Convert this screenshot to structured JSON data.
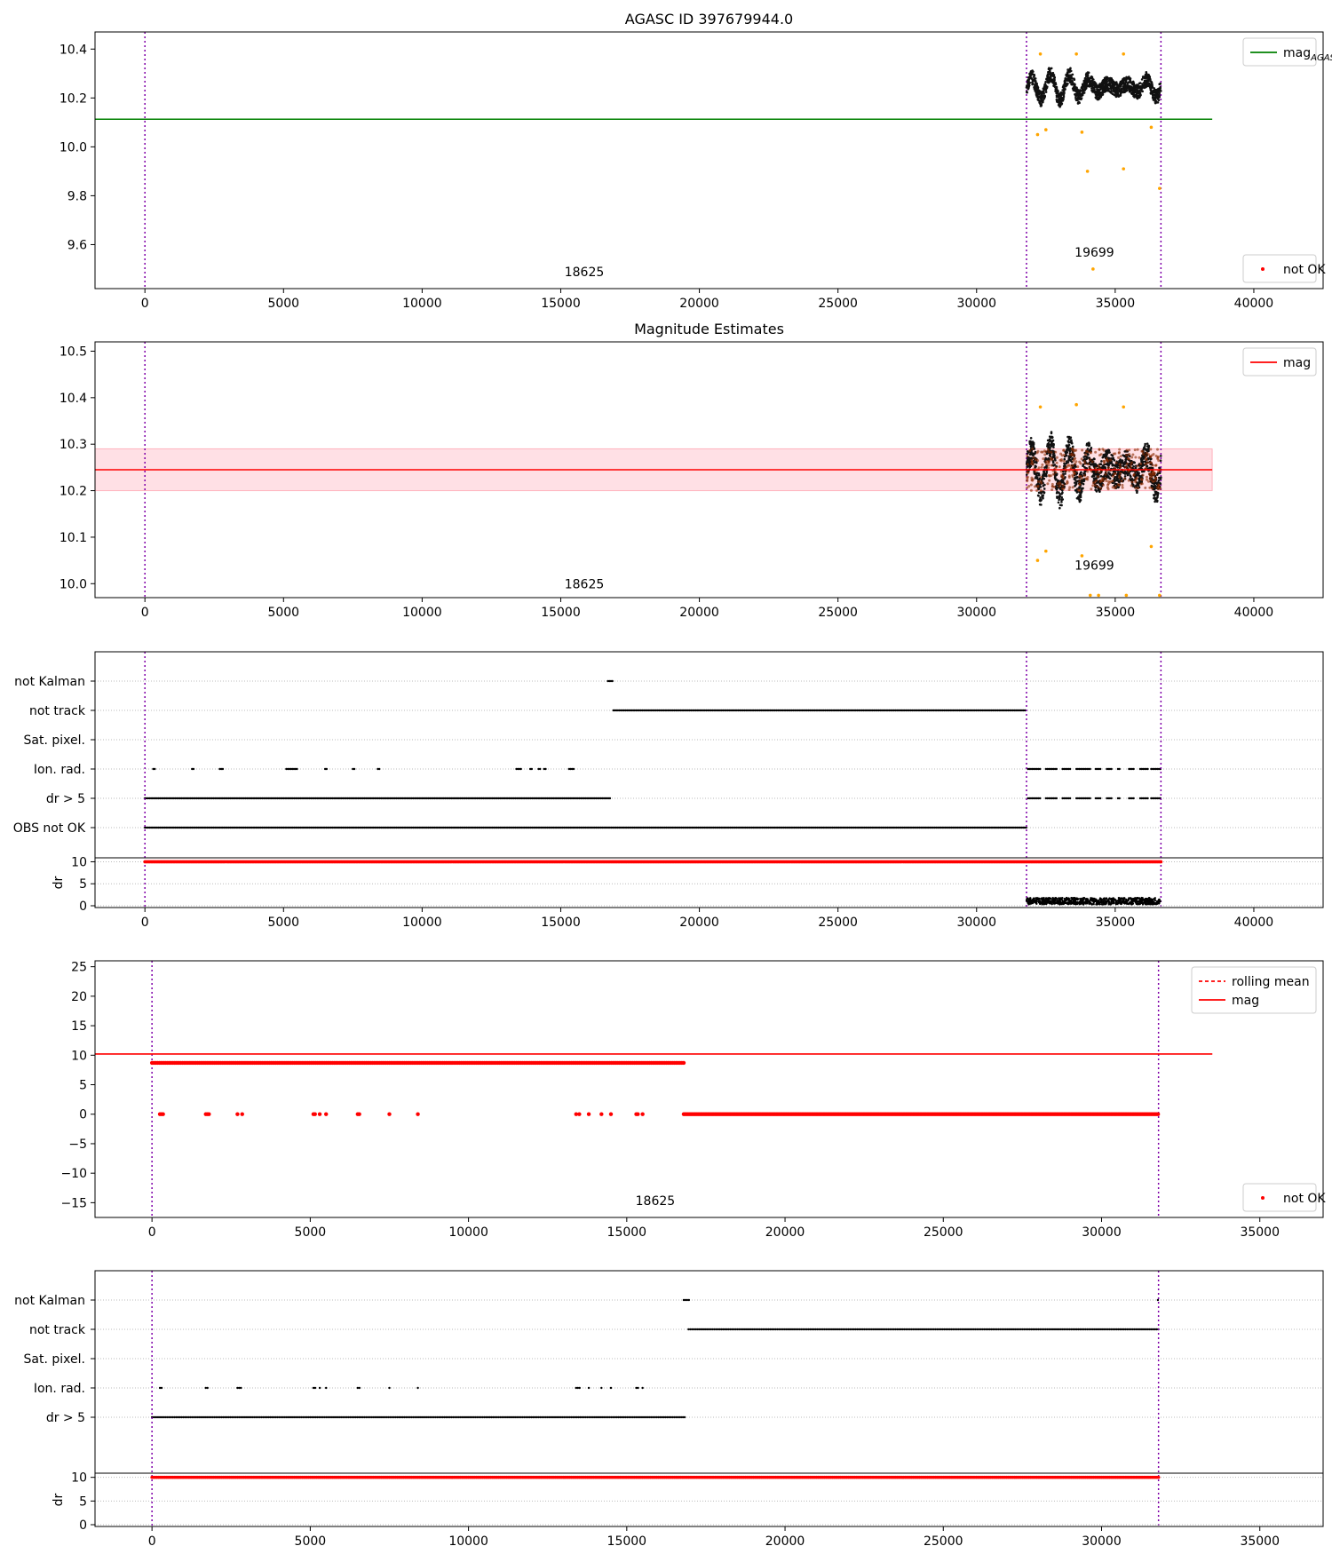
{
  "figure": {
    "width": 1500,
    "height": 1750
  },
  "chart_data": [
    {
      "id": "agasc",
      "type": "scatter",
      "title": "AGASC ID 397679944.0",
      "xlim": [
        -1800,
        42500
      ],
      "ylim": [
        9.42,
        10.47
      ],
      "xticks": [
        0,
        5000,
        10000,
        15000,
        20000,
        25000,
        30000,
        35000,
        40000
      ],
      "yticks": [
        9.6,
        9.8,
        10.0,
        10.2,
        10.4
      ],
      "ytick_labels": [
        "9.6",
        "9.8",
        "10.0",
        "10.2",
        "10.4"
      ],
      "vlines": [
        0,
        31800,
        36650
      ],
      "hline": {
        "y": 10.113,
        "x0": -1800,
        "x1": 38500,
        "color": "#008000"
      },
      "band": null,
      "cluster": {
        "x0": 31800,
        "x1": 36650,
        "ycenter": 10.245,
        "amp": 0.055,
        "noise": 0.03
      },
      "outliers": [
        [
          32200,
          10.05
        ],
        [
          32500,
          10.07
        ],
        [
          33800,
          10.06
        ],
        [
          34000,
          9.9
        ],
        [
          34200,
          9.5
        ],
        [
          35300,
          9.91
        ],
        [
          36300,
          10.08
        ],
        [
          36600,
          9.83
        ],
        [
          32300,
          10.38
        ],
        [
          33600,
          10.38
        ],
        [
          35300,
          10.38
        ]
      ],
      "obs_labels": [
        {
          "text": "18625",
          "x": 15850,
          "y": 9.47
        },
        {
          "text": "19699",
          "x": 34250,
          "y": 9.55
        }
      ],
      "legend_top": {
        "entries": [
          {
            "label": "mag",
            "sub": "AGASC",
            "kind": "line",
            "color": "#008000"
          }
        ]
      },
      "legend_bottom": {
        "entries": [
          {
            "label": "not OK",
            "kind": "dot",
            "color": "#ff0000"
          }
        ]
      }
    },
    {
      "id": "mag_est",
      "type": "scatter",
      "title": "Magnitude Estimates",
      "xlim": [
        -1800,
        42500
      ],
      "ylim": [
        9.97,
        10.52
      ],
      "xticks": [
        0,
        5000,
        10000,
        15000,
        20000,
        25000,
        30000,
        35000,
        40000
      ],
      "yticks": [
        10.0,
        10.1,
        10.2,
        10.3,
        10.4,
        10.5
      ],
      "ytick_labels": [
        "10.0",
        "10.1",
        "10.2",
        "10.3",
        "10.4",
        "10.5"
      ],
      "vlines": [
        0,
        31800,
        36650
      ],
      "hline": {
        "y": 10.245,
        "x0": -1800,
        "x1": 38500,
        "color": "#ff0000"
      },
      "band": {
        "y0": 10.2,
        "y1": 10.29,
        "x0": -1800,
        "x1": 38500
      },
      "cluster": {
        "x0": 31800,
        "x1": 36650,
        "ycenter": 10.245,
        "amp": 0.055,
        "noise": 0.03
      },
      "outliers": [
        [
          32200,
          10.05
        ],
        [
          32500,
          10.07
        ],
        [
          33800,
          10.06
        ],
        [
          36300,
          10.08
        ],
        [
          32300,
          10.38
        ],
        [
          33600,
          10.385
        ],
        [
          35300,
          10.38
        ],
        [
          34100,
          9.975
        ],
        [
          34400,
          9.975
        ],
        [
          35400,
          9.975
        ],
        [
          36600,
          9.975
        ]
      ],
      "obs_labels": [
        {
          "text": "18625",
          "x": 15850,
          "y": 9.99
        },
        {
          "text": "19699",
          "x": 34250,
          "y": 10.03
        }
      ],
      "legend_top": {
        "entries": [
          {
            "label": "mag",
            "kind": "line",
            "color": "#ff0000"
          }
        ]
      },
      "legend_bottom": null
    },
    {
      "id": "flags_1",
      "type": "flags",
      "xlim": [
        -1800,
        42500
      ],
      "xticks": [
        0,
        5000,
        10000,
        15000,
        20000,
        25000,
        30000,
        35000,
        40000
      ],
      "vlines": [
        0,
        31800,
        36650
      ],
      "rows": [
        "not Kalman",
        "not track",
        "Sat. pixel.",
        "Ion. rad.",
        "dr > 5",
        "OBS not OK"
      ],
      "segments": {
        "not Kalman": [
          [
            16700,
            16900
          ]
        ],
        "not track": [
          [
            16900,
            31800
          ]
        ],
        "Sat. pixel.": [],
        "Ion. rad.": [
          [
            300,
            360
          ],
          [
            1700,
            1800
          ],
          [
            2700,
            2850
          ],
          [
            5100,
            5500
          ],
          [
            6500,
            6600
          ],
          [
            7500,
            7600
          ],
          [
            8400,
            8500
          ],
          [
            13400,
            13600
          ],
          [
            13900,
            14000
          ],
          [
            14200,
            14300
          ],
          [
            14400,
            14500
          ],
          [
            15300,
            15500
          ],
          [
            31850,
            32300
          ],
          [
            32500,
            32900
          ],
          [
            33100,
            33400
          ],
          [
            33600,
            34100
          ],
          [
            34300,
            34500
          ],
          [
            34700,
            34900
          ],
          [
            35100,
            35200
          ],
          [
            35500,
            35700
          ],
          [
            35900,
            36200
          ],
          [
            36300,
            36650
          ]
        ],
        "dr > 5": [
          [
            0,
            16800
          ],
          [
            31850,
            32300
          ],
          [
            32500,
            32900
          ],
          [
            33100,
            33400
          ],
          [
            33600,
            34100
          ],
          [
            34300,
            34500
          ],
          [
            34700,
            34900
          ],
          [
            35100,
            35200
          ],
          [
            35500,
            35700
          ],
          [
            35900,
            36200
          ],
          [
            36300,
            36650
          ]
        ],
        "OBS not OK": [
          [
            0,
            31800
          ]
        ]
      },
      "dr": {
        "label": "dr",
        "ylim": [
          0,
          10.5
        ],
        "yticks": [
          0,
          5,
          10
        ],
        "red_x": [
          0,
          36650
        ],
        "red_y": 10,
        "cluster_x": [
          31800,
          36650
        ]
      }
    },
    {
      "id": "rolling",
      "type": "scatter",
      "xlim": [
        -1800,
        37000
      ],
      "ylim": [
        -17.5,
        26
      ],
      "xticks": [
        0,
        5000,
        10000,
        15000,
        20000,
        25000,
        30000,
        35000
      ],
      "yticks": [
        -15,
        -10,
        -5,
        0,
        5,
        10,
        15,
        20,
        25
      ],
      "ytick_labels": [
        "−15",
        "−10",
        "−5",
        "0",
        "5",
        "10",
        "15",
        "20",
        "25"
      ],
      "vlines": [
        0,
        31800
      ],
      "hline": {
        "y": 10.2,
        "x0": -1800,
        "x1": 33500,
        "color": "#ff0000"
      },
      "upper_band": {
        "x0": 0,
        "x1": 16800,
        "y": 8.7
      },
      "zero_segments": [
        [
          16800,
          31800
        ]
      ],
      "zero_points": [
        250,
        300,
        350,
        1700,
        1750,
        1800,
        2700,
        2850,
        5100,
        5150,
        5300,
        5500,
        6500,
        6550,
        7500,
        8400,
        13400,
        13500,
        13800,
        14200,
        14500,
        15300,
        15350,
        15500
      ],
      "obs_labels": [
        {
          "text": "18625",
          "x": 15900,
          "y": -15.4
        }
      ],
      "legend_top": {
        "entries": [
          {
            "label": "rolling mean",
            "kind": "dashed",
            "color": "#ff0000"
          },
          {
            "label": "mag",
            "kind": "line",
            "color": "#ff0000"
          }
        ]
      },
      "legend_bottom": {
        "entries": [
          {
            "label": "not OK",
            "kind": "dot",
            "color": "#ff0000"
          }
        ]
      }
    },
    {
      "id": "flags_2",
      "type": "flags",
      "xlim": [
        -1800,
        37000
      ],
      "xticks": [
        0,
        5000,
        10000,
        15000,
        20000,
        25000,
        30000,
        35000
      ],
      "vlines": [
        0,
        31800
      ],
      "rows": [
        "not Kalman",
        "not track",
        "Sat. pixel.",
        "Ion. rad.",
        "dr > 5"
      ],
      "segments": {
        "not Kalman": [
          [
            16800,
            17000
          ],
          [
            31780,
            31800
          ]
        ],
        "not track": [
          [
            16950,
            31800
          ]
        ],
        "Sat. pixel.": [],
        "Ion. rad.": [
          [
            250,
            350
          ],
          [
            1700,
            1800
          ],
          [
            2700,
            2850
          ],
          [
            5100,
            5200
          ],
          [
            5300,
            5350
          ],
          [
            5500,
            5550
          ],
          [
            6500,
            6600
          ],
          [
            7500,
            7550
          ],
          [
            8400,
            8450
          ],
          [
            13400,
            13550
          ],
          [
            13800,
            13850
          ],
          [
            14200,
            14250
          ],
          [
            14500,
            14550
          ],
          [
            15300,
            15400
          ],
          [
            15500,
            15550
          ]
        ],
        "dr > 5": [
          [
            0,
            16850
          ]
        ]
      },
      "dr": {
        "label": "dr",
        "ylim": [
          0,
          10.5
        ],
        "yticks": [
          0,
          5,
          10
        ],
        "red_x": [
          0,
          31800
        ],
        "red_y": 10,
        "cluster_x": null
      }
    }
  ]
}
